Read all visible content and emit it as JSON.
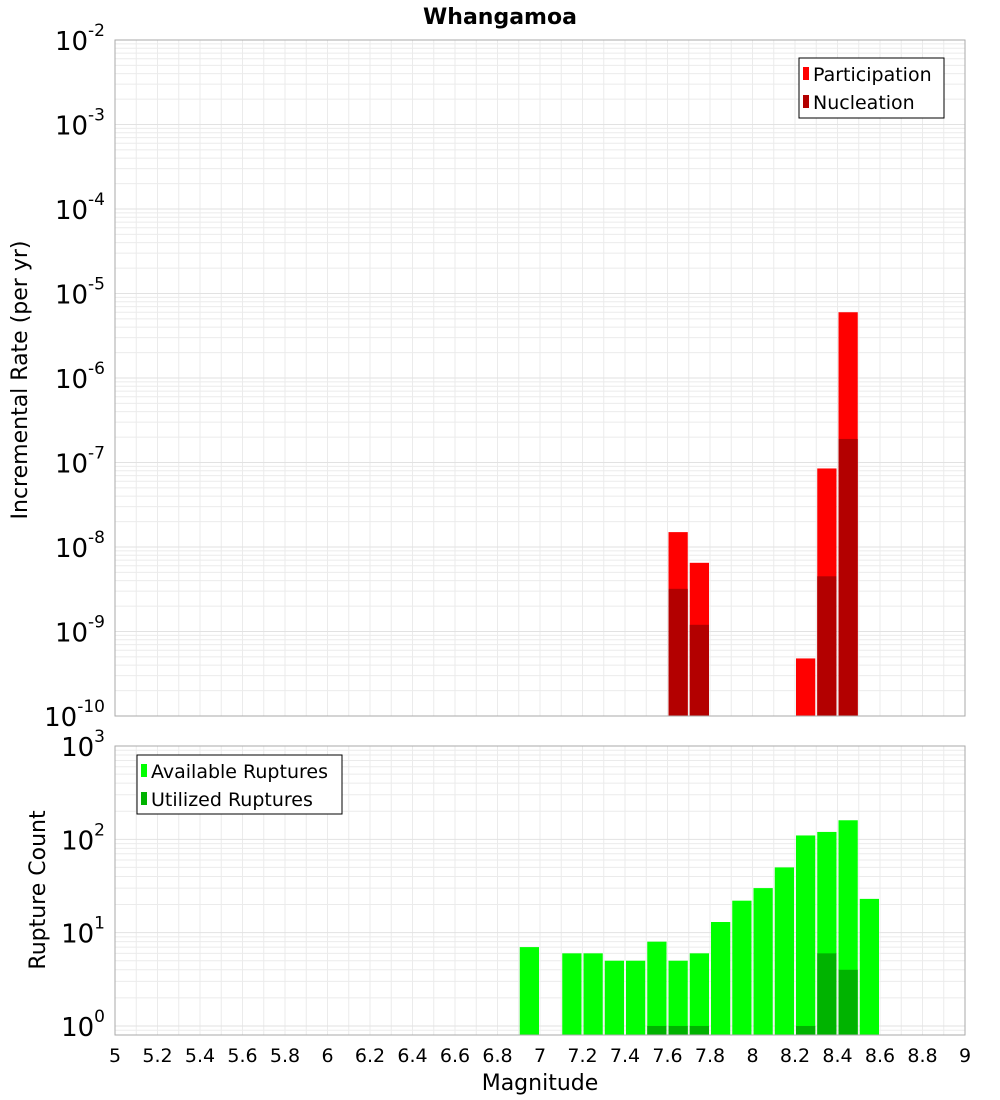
{
  "title": "Whangamoa",
  "colors": {
    "participation": "#ff0000",
    "nucleation": "#b30000",
    "available": "#00ff00",
    "utilized": "#00b300",
    "grid": "#ebebeb",
    "frame": "#aaaaaa"
  },
  "x_axis": {
    "label": "Magnitude",
    "range": [
      5,
      9
    ],
    "ticks": [
      "5",
      "5.2",
      "5.4",
      "5.6",
      "5.8",
      "6",
      "6.2",
      "6.4",
      "6.6",
      "6.8",
      "7",
      "7.2",
      "7.4",
      "7.6",
      "7.8",
      "8",
      "8.2",
      "8.4",
      "8.6",
      "8.8",
      "9"
    ]
  },
  "chart_data": [
    {
      "type": "bar",
      "title": "Whangamoa",
      "xlabel": "Magnitude",
      "ylabel": "Incremental Rate (per yr)",
      "yscale": "log",
      "xlim": [
        5,
        9
      ],
      "ylim": [
        1e-10,
        0.01
      ],
      "y_ticks": [
        {
          "base": "10",
          "exp": "-10"
        },
        {
          "base": "10",
          "exp": "-9"
        },
        {
          "base": "10",
          "exp": "-8"
        },
        {
          "base": "10",
          "exp": "-7"
        },
        {
          "base": "10",
          "exp": "-6"
        },
        {
          "base": "10",
          "exp": "-5"
        },
        {
          "base": "10",
          "exp": "-4"
        },
        {
          "base": "10",
          "exp": "-3"
        },
        {
          "base": "10",
          "exp": "-2"
        }
      ],
      "bar_width": 0.1,
      "legend": {
        "position": "top-right",
        "entries": [
          "Participation",
          "Nucleation"
        ]
      },
      "grid": true,
      "series": [
        {
          "name": "Participation",
          "color": "#ff0000",
          "x": [
            7.65,
            7.75,
            8.25,
            8.35,
            8.45
          ],
          "values": [
            1.5e-08,
            6.5e-09,
            4.8e-10,
            8.5e-08,
            6e-06
          ]
        },
        {
          "name": "Nucleation",
          "color": "#b30000",
          "x": [
            7.65,
            7.75,
            8.35,
            8.45
          ],
          "values": [
            3.2e-09,
            1.2e-09,
            4.5e-09,
            1.9e-07
          ]
        }
      ]
    },
    {
      "type": "bar",
      "xlabel": "Magnitude",
      "ylabel": "Rupture Count",
      "yscale": "log",
      "xlim": [
        5,
        9
      ],
      "ylim": [
        0.8,
        1000
      ],
      "y_ticks": [
        {
          "base": "10",
          "exp": "0",
          "value": 1
        },
        {
          "base": "10",
          "exp": "1",
          "value": 10
        },
        {
          "base": "10",
          "exp": "2",
          "value": 100
        },
        {
          "base": "10",
          "exp": "3",
          "value": 1000
        }
      ],
      "bar_width": 0.1,
      "legend": {
        "position": "top-left",
        "entries": [
          "Available Ruptures",
          "Utilized Ruptures"
        ]
      },
      "grid": true,
      "series": [
        {
          "name": "Available Ruptures",
          "color": "#00ff00",
          "x": [
            6.95,
            7.15,
            7.25,
            7.35,
            7.45,
            7.55,
            7.65,
            7.75,
            7.85,
            7.95,
            8.05,
            8.15,
            8.25,
            8.35,
            8.45,
            8.55
          ],
          "values": [
            7,
            6,
            6,
            5,
            5,
            8,
            5,
            6,
            13,
            22,
            30,
            50,
            110,
            120,
            160,
            23
          ]
        },
        {
          "name": "Utilized Ruptures",
          "color": "#00b300",
          "x": [
            7.55,
            7.65,
            7.75,
            8.25,
            8.35,
            8.45
          ],
          "values": [
            1,
            1,
            1,
            1,
            6,
            4
          ]
        }
      ]
    }
  ]
}
